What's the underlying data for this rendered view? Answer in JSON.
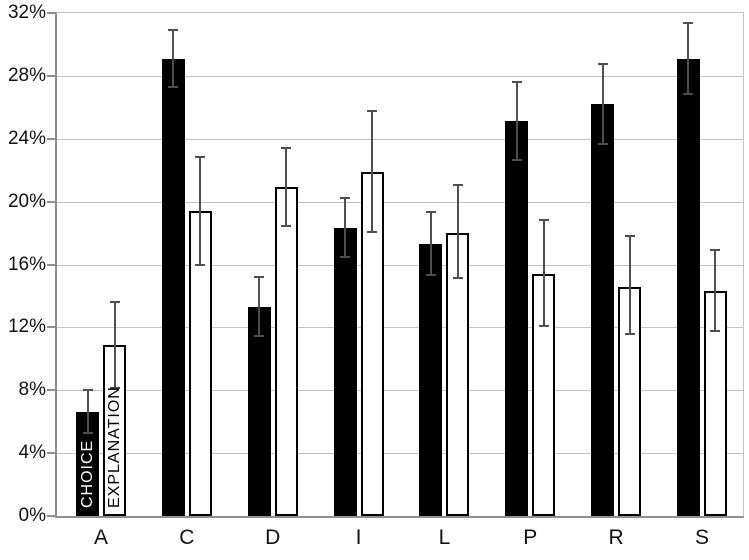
{
  "chart_data": {
    "type": "bar",
    "title": "",
    "xlabel": "",
    "ylabel": "",
    "unit": "%",
    "grid": true,
    "legend_position": "labels-inside-first-group-bars",
    "categories": [
      "A",
      "C",
      "D",
      "I",
      "L",
      "P",
      "R",
      "S"
    ],
    "series": [
      {
        "name": "CHOICE",
        "style": "solid-black",
        "values": [
          6.6,
          29.1,
          13.3,
          18.3,
          17.3,
          25.1,
          26.2,
          29.1
        ],
        "err_low": [
          5.2,
          27.2,
          11.4,
          16.4,
          15.3,
          22.6,
          23.6,
          26.8
        ],
        "err_high": [
          8.1,
          31.0,
          15.3,
          20.3,
          19.4,
          27.7,
          28.8,
          31.4
        ]
      },
      {
        "name": "EXPLANATION",
        "style": "white-outlined",
        "values": [
          10.9,
          19.4,
          20.9,
          21.9,
          18.0,
          15.4,
          14.6,
          14.3
        ],
        "err_low": [
          8.1,
          15.9,
          18.4,
          18.0,
          15.1,
          12.0,
          11.5,
          11.7
        ],
        "err_high": [
          13.7,
          22.9,
          23.5,
          25.8,
          21.1,
          18.9,
          17.9,
          17.0
        ]
      }
    ],
    "ylim": [
      0,
      32
    ],
    "ytick_step": 4,
    "ytick_labels": [
      "0%",
      "4%",
      "8%",
      "12%",
      "16%",
      "20%",
      "24%",
      "28%",
      "32%"
    ],
    "colors": {
      "bar_black": "#000000",
      "bar_white": "#ffffff",
      "bar_border": "#000000",
      "gridline": "#c4c4c4",
      "axis": "#8f8f8f",
      "error_bar": "#4f4f4f",
      "label_text": "#111111"
    }
  }
}
